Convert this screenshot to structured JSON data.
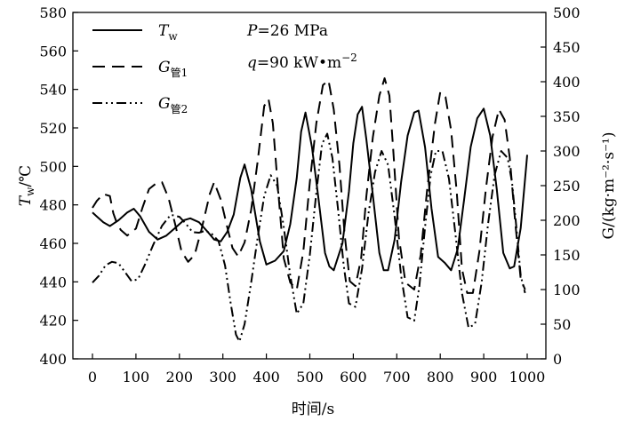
{
  "chart_data": {
    "type": "line",
    "x_axis": {
      "label": "时间/s",
      "range": [
        0,
        1000
      ],
      "ticks": [
        0,
        100,
        200,
        300,
        400,
        500,
        600,
        700,
        800,
        900,
        1000
      ]
    },
    "y_left": {
      "label_main": "T",
      "label_sub": "w",
      "label_unit": "/℃",
      "range": [
        400,
        580
      ],
      "ticks": [
        400,
        420,
        440,
        460,
        480,
        500,
        520,
        540,
        560,
        580
      ]
    },
    "y_right": {
      "label_text": "G/(kg·m⁻²·s⁻¹)",
      "range": [
        0,
        500
      ],
      "ticks": [
        0,
        50,
        100,
        150,
        200,
        250,
        300,
        350,
        400,
        450,
        500
      ]
    },
    "legend": {
      "placement": "top-left",
      "entries": [
        {
          "main": "T",
          "sub": "w",
          "series": "Tw"
        },
        {
          "main": "G",
          "sub": "管1",
          "series": "G1"
        },
        {
          "main": "G",
          "sub": "管2",
          "series": "G2"
        }
      ]
    },
    "annotations": {
      "p_sym": "P",
      "p_val": "=26 MPa",
      "q_sym": "q",
      "q_val": "=90 kW•m",
      "q_exp": "−2"
    },
    "series": [
      {
        "name": "Tw",
        "axis": "left",
        "style": "solid",
        "x": [
          0,
          10,
          25,
          40,
          60,
          80,
          95,
          110,
          130,
          150,
          170,
          190,
          210,
          225,
          245,
          265,
          280,
          295,
          310,
          325,
          340,
          350,
          365,
          385,
          400,
          420,
          440,
          455,
          470,
          480,
          490,
          505,
          520,
          535,
          545,
          555,
          575,
          590,
          600,
          610,
          620,
          630,
          645,
          660,
          670,
          680,
          695,
          710,
          725,
          740,
          750,
          765,
          780,
          795,
          810,
          825,
          840,
          855,
          870,
          885,
          900,
          915,
          930,
          945,
          960,
          970,
          985,
          1000
        ],
        "values": [
          476,
          474,
          471,
          469,
          472,
          476,
          478,
          474,
          466,
          462,
          464,
          468,
          472,
          473,
          471,
          466,
          462,
          461,
          466,
          475,
          494,
          501,
          488,
          461,
          449,
          451,
          456,
          470,
          494,
          518,
          528,
          510,
          483,
          455,
          448,
          446,
          460,
          487,
          512,
          527,
          531,
          514,
          485,
          455,
          446,
          446,
          462,
          492,
          516,
          528,
          529,
          510,
          478,
          453,
          450,
          446,
          457,
          483,
          510,
          525,
          530,
          516,
          488,
          455,
          447,
          448,
          468,
          506
        ]
      },
      {
        "name": "G1",
        "axis": "right",
        "style": "dashed",
        "x": [
          0,
          10,
          25,
          40,
          48,
          55,
          65,
          80,
          100,
          115,
          130,
          150,
          160,
          175,
          190,
          205,
          220,
          235,
          250,
          270,
          280,
          295,
          310,
          322,
          335,
          350,
          365,
          380,
          395,
          405,
          415,
          425,
          440,
          455,
          470,
          485,
          500,
          515,
          530,
          543,
          555,
          568,
          580,
          592,
          605,
          618,
          630,
          645,
          660,
          672,
          683,
          692,
          705,
          720,
          740,
          755,
          770,
          788,
          800,
          812,
          825,
          838,
          850,
          862,
          875,
          890,
          905,
          920,
          935,
          948,
          960,
          972,
          985,
          995
        ],
        "values": [
          218,
          228,
          238,
          235,
          210,
          198,
          186,
          178,
          188,
          218,
          245,
          255,
          255,
          232,
          195,
          155,
          140,
          150,
          185,
          238,
          255,
          230,
          190,
          160,
          148,
          168,
          215,
          285,
          365,
          375,
          340,
          260,
          145,
          110,
          100,
          155,
          255,
          340,
          395,
          402,
          360,
          280,
          180,
          112,
          105,
          145,
          235,
          320,
          380,
          405,
          380,
          300,
          175,
          110,
          100,
          150,
          245,
          340,
          385,
          378,
          330,
          240,
          130,
          95,
          95,
          155,
          245,
          320,
          360,
          345,
          290,
          200,
          115,
          100
        ]
      },
      {
        "name": "G2",
        "axis": "right",
        "style": "dash-dot",
        "x": [
          0,
          15,
          30,
          45,
          60,
          75,
          90,
          105,
          120,
          140,
          160,
          180,
          200,
          215,
          230,
          245,
          260,
          275,
          290,
          305,
          318,
          330,
          338,
          350,
          365,
          380,
          395,
          410,
          425,
          440,
          455,
          470,
          485,
          500,
          515,
          528,
          540,
          552,
          565,
          578,
          590,
          605,
          620,
          635,
          650,
          665,
          680,
          695,
          710,
          725,
          740,
          752,
          765,
          778,
          790,
          805,
          820,
          835,
          850,
          865,
          880,
          895,
          910,
          925,
          940,
          955,
          965,
          975,
          985,
          995
        ],
        "values": [
          110,
          120,
          135,
          140,
          138,
          125,
          112,
          115,
          135,
          165,
          192,
          208,
          205,
          195,
          183,
          182,
          185,
          180,
          170,
          135,
          80,
          35,
          25,
          50,
          110,
          175,
          235,
          265,
          250,
          190,
          120,
          65,
          80,
          150,
          240,
          310,
          325,
          290,
          215,
          135,
          80,
          75,
          130,
          210,
          270,
          300,
          280,
          205,
          120,
          60,
          55,
          105,
          190,
          265,
          300,
          300,
          260,
          180,
          95,
          45,
          50,
          110,
          195,
          265,
          300,
          290,
          255,
          190,
          120,
          95
        ]
      }
    ]
  }
}
